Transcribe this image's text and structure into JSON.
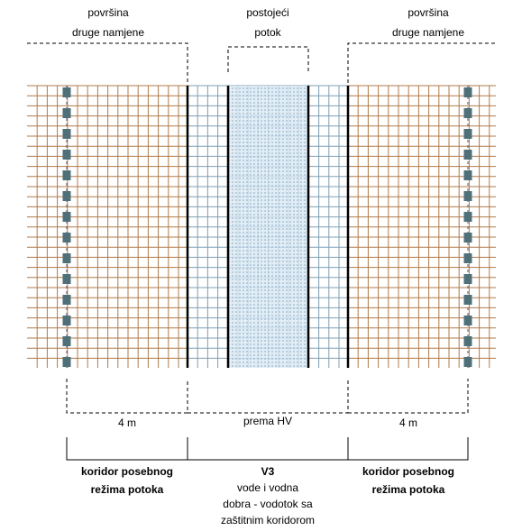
{
  "top_labels": [
    {
      "lines": [
        "površina",
        "druge namjene"
      ]
    },
    {
      "lines": [
        "postojeći",
        "potok"
      ]
    },
    {
      "lines": [
        "površina",
        "druge namjene"
      ]
    }
  ],
  "dimensions": [
    "4 m",
    "prema HV",
    "4 m"
  ],
  "zones": [
    {
      "lines": [
        "koridor posebnog",
        "režima potoka"
      ]
    },
    {
      "title": "V3",
      "lines": [
        "vode i vodna",
        "dobra - vodotok sa",
        "zaštitnim koridorom"
      ]
    },
    {
      "lines": [
        "koridor posebnog",
        "režima potoka"
      ]
    }
  ]
}
